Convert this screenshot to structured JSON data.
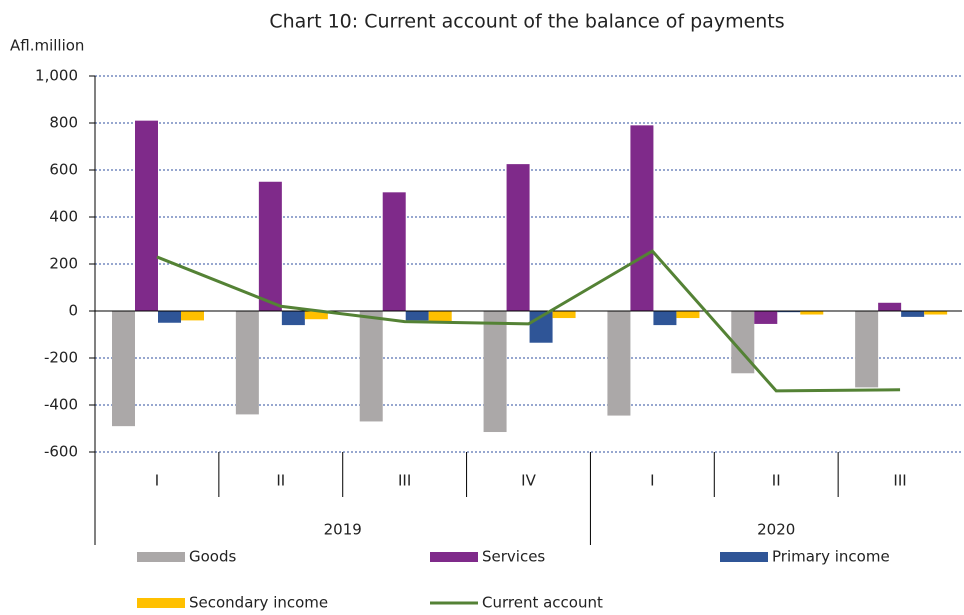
{
  "chart_data": {
    "type": "bar",
    "title": "Chart 10: Current account of the balance of payments",
    "y_label": "Afl.million",
    "categories": [
      "I",
      "II",
      "III",
      "IV",
      "I",
      "II",
      "III"
    ],
    "groups": [
      {
        "label": "2019",
        "span": 4
      },
      {
        "label": "2020",
        "span": 3
      }
    ],
    "series": [
      {
        "name": "Goods",
        "type": "bar",
        "color": "#aba8a8",
        "values": [
          -490,
          -440,
          -470,
          -515,
          -445,
          -265,
          -325
        ]
      },
      {
        "name": "Services",
        "type": "bar",
        "color": "#7f2a8a",
        "values": [
          810,
          550,
          505,
          625,
          790,
          -55,
          35
        ]
      },
      {
        "name": "Primary income",
        "type": "bar",
        "color": "#2f5597",
        "values": [
          -50,
          -60,
          -40,
          -135,
          -60,
          -5,
          -25
        ]
      },
      {
        "name": "Secondary income",
        "type": "bar",
        "color": "#ffc000",
        "values": [
          -40,
          -35,
          -45,
          -30,
          -30,
          -15,
          -15
        ]
      },
      {
        "name": "Current account",
        "type": "line",
        "color": "#548235",
        "values": [
          230,
          20,
          -45,
          -55,
          255,
          -340,
          -335
        ]
      }
    ],
    "ylim": [
      -600,
      1000
    ],
    "yticks": [
      {
        "value": -600,
        "label": "-600"
      },
      {
        "value": -400,
        "label": "-400"
      },
      {
        "value": -200,
        "label": "-200"
      },
      0,
      200,
      400,
      600,
      800,
      {
        "value": 1000,
        "label": "1,000"
      }
    ],
    "grid": true
  }
}
